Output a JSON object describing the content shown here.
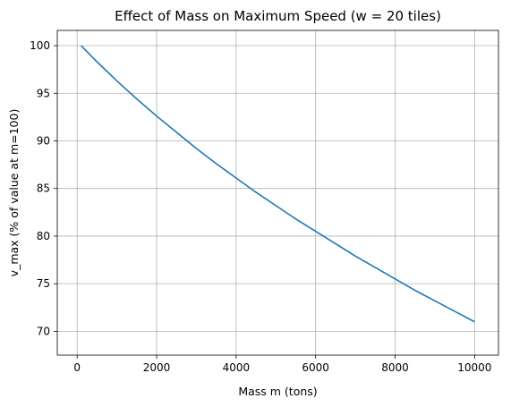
{
  "chart_data": {
    "type": "line",
    "title": "Effect of Mass on Maximum Speed (w = 20 tiles)",
    "xlabel": "Mass m (tons)",
    "ylabel": "v_max (% of value at m=100)",
    "xlim": [
      -500,
      10600
    ],
    "ylim": [
      67.5,
      101.6
    ],
    "xticks": [
      0,
      2000,
      4000,
      6000,
      8000,
      10000
    ],
    "xtick_labels": [
      "0",
      "2000",
      "4000",
      "6000",
      "8000",
      "10000"
    ],
    "yticks": [
      70,
      75,
      80,
      85,
      90,
      95,
      100
    ],
    "ytick_labels": [
      "70",
      "75",
      "80",
      "85",
      "90",
      "95",
      "100"
    ],
    "grid": true,
    "series": [
      {
        "color": "#1f77b4",
        "x": [
          100,
          500,
          1000,
          1500,
          2000,
          2500,
          3000,
          3500,
          4000,
          4500,
          5000,
          5500,
          6000,
          6500,
          7000,
          7500,
          8000,
          8500,
          9000,
          9500,
          10000
        ],
        "y": [
          100.0,
          98.3,
          96.3,
          94.4,
          92.6,
          90.9,
          89.2,
          87.6,
          86.1,
          84.6,
          83.2,
          81.8,
          80.5,
          79.2,
          77.9,
          76.7,
          75.5,
          74.3,
          73.2,
          72.1,
          71.0
        ]
      }
    ]
  }
}
